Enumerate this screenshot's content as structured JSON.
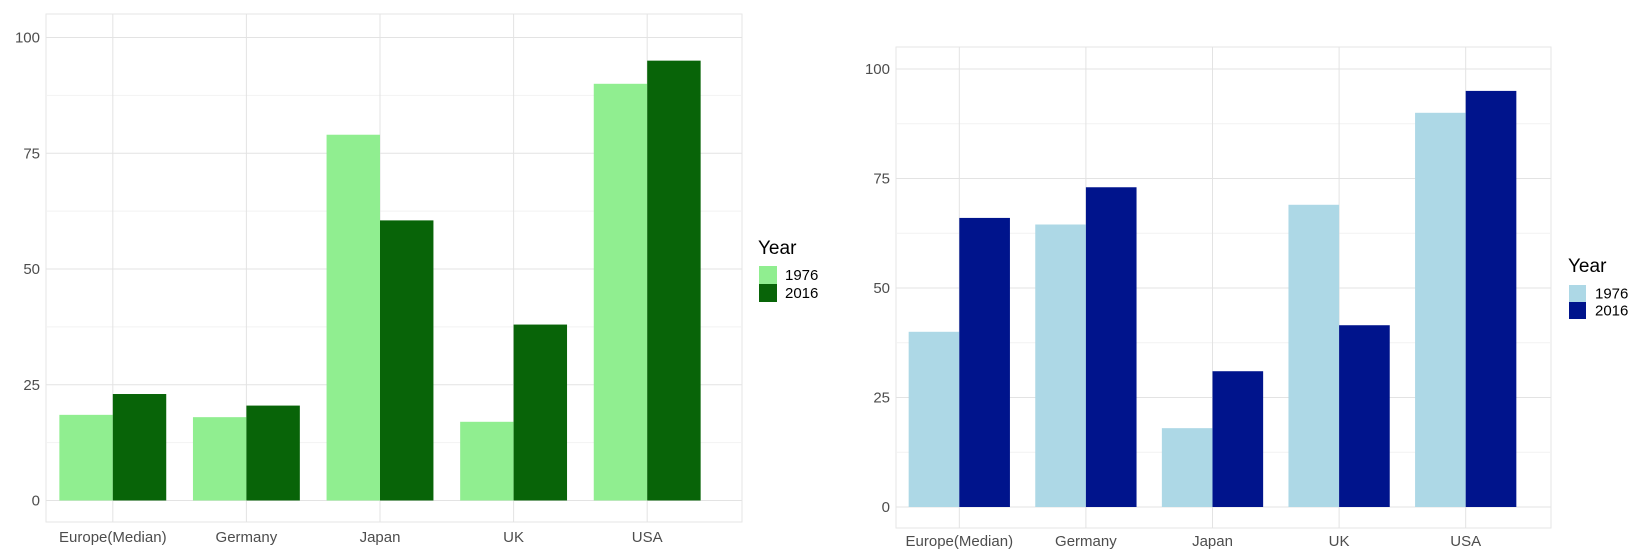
{
  "chart_data": [
    {
      "type": "bar",
      "categories": [
        "Europe(Median)",
        "Germany",
        "Japan",
        "UK",
        "USA"
      ],
      "series": [
        {
          "name": "1976",
          "values": [
            18.5,
            18,
            79,
            17,
            90
          ],
          "color": "#90ee90"
        },
        {
          "name": "2016",
          "values": [
            23,
            20.5,
            60.5,
            38,
            95
          ],
          "color": "#086408"
        }
      ],
      "title": "",
      "xlabel": "",
      "ylabel": "",
      "ylim": [
        0,
        105
      ],
      "yticks": [
        0,
        25,
        50,
        75,
        100
      ],
      "grid": true,
      "legend": {
        "title": "Year",
        "placement": "right"
      }
    },
    {
      "type": "bar",
      "categories": [
        "Europe(Median)",
        "Germany",
        "Japan",
        "UK",
        "USA"
      ],
      "series": [
        {
          "name": "1976",
          "values": [
            40,
            64.5,
            18,
            69,
            90
          ],
          "color": "#add8e6"
        },
        {
          "name": "2016",
          "values": [
            66,
            73,
            31,
            41.5,
            95
          ],
          "color": "#00148c"
        }
      ],
      "title": "",
      "xlabel": "",
      "ylabel": "",
      "ylim": [
        0,
        100
      ],
      "yticks": [
        0,
        25,
        50,
        75,
        100
      ],
      "grid": true,
      "legend": {
        "title": "Year",
        "placement": "right"
      }
    }
  ]
}
